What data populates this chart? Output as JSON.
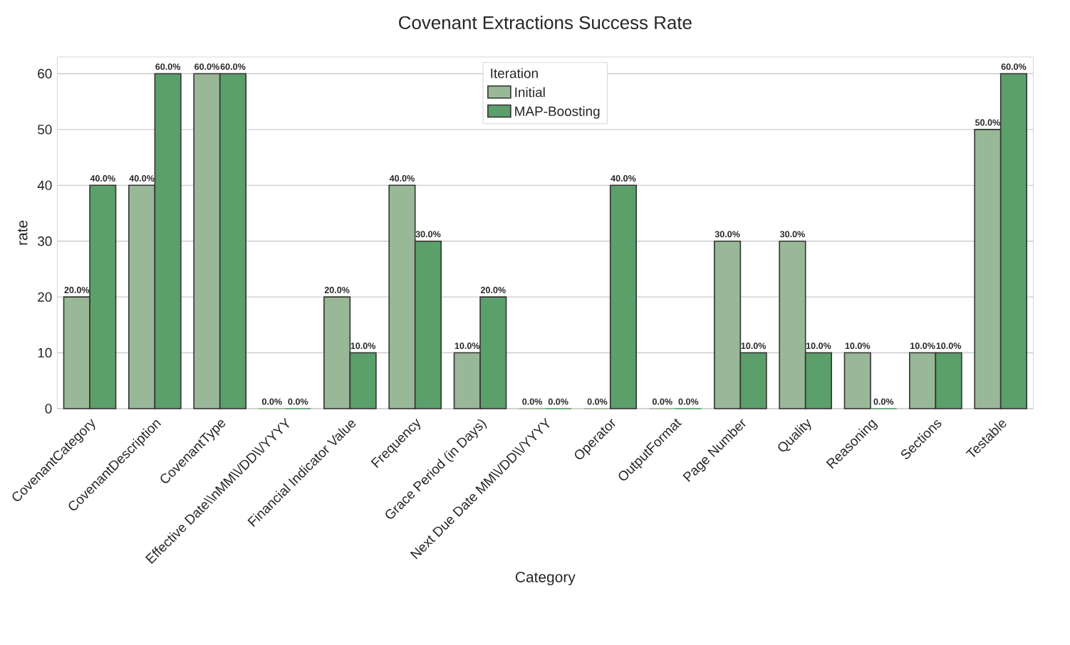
{
  "chart_data": {
    "type": "bar",
    "title": "Covenant Extractions Success Rate",
    "xlabel": "Category",
    "ylabel": "rate",
    "legend_title": "Iteration",
    "categories": [
      "CovenantCategory",
      "CovenantDescription",
      "CovenantType",
      "Effective Date\\\\nMM\\\\/DD\\\\/YYYY",
      "Financial Indicator Value",
      "Frequency",
      "Grace Period (in Days)",
      "Next Due Date MM\\\\/DD\\\\/YYYY",
      "Operator",
      "OutputFormat",
      "Page Number",
      "Quality",
      "Reasoning",
      "Sections",
      "Testable"
    ],
    "series": [
      {
        "name": "Initial",
        "color": "#98b897",
        "values": [
          20,
          40,
          60,
          0,
          20,
          40,
          10,
          0,
          0,
          0,
          30,
          30,
          10,
          10,
          50
        ],
        "value_labels": [
          "20.0%",
          "40.0%",
          "60.0%",
          "0.0%",
          "20.0%",
          "40.0%",
          "10.0%",
          "0.0%",
          "0.0%",
          "0.0%",
          "30.0%",
          "30.0%",
          "10.0%",
          "10.0%",
          "50.0%"
        ]
      },
      {
        "name": "MAP-Boosting",
        "color": "#5b9f6b",
        "values": [
          40,
          60,
          60,
          0,
          10,
          30,
          20,
          0,
          40,
          0,
          10,
          10,
          0,
          10,
          60
        ],
        "value_labels": [
          "40.0%",
          "60.0%",
          "60.0%",
          "0.0%",
          "10.0%",
          "30.0%",
          "20.0%",
          "0.0%",
          "40.0%",
          "0.0%",
          "10.0%",
          "10.0%",
          "0.0%",
          "10.0%",
          "60.0%"
        ]
      }
    ],
    "ylim": [
      0,
      63
    ],
    "yticks": [
      0,
      10,
      20,
      30,
      40,
      50,
      60
    ],
    "grid": "y",
    "legend": "top"
  }
}
